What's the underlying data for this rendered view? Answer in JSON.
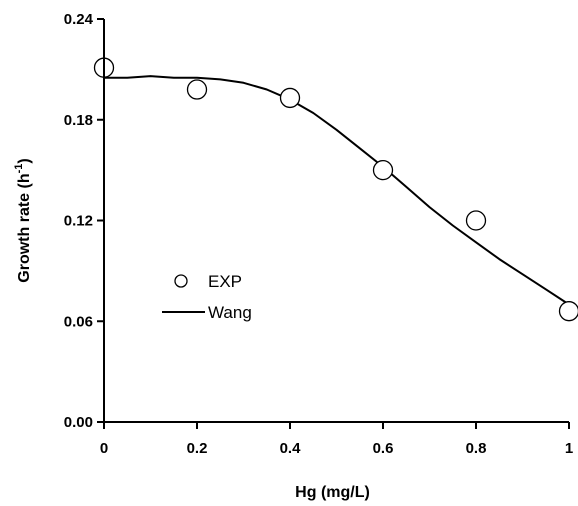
{
  "chart_data": {
    "type": "scatter",
    "title": "",
    "xlabel": "Hg (mg/L)",
    "ylabel": "Growth rate (h",
    "ylabel_sup": "-1",
    "ylabel_end": ")",
    "xlim": [
      0,
      1
    ],
    "ylim": [
      0,
      0.24
    ],
    "x_ticks": [
      "0",
      "0.2",
      "0.4",
      "0.6",
      "0.8",
      "1"
    ],
    "y_ticks": [
      "0.00",
      "0.06",
      "0.12",
      "0.18",
      "0.24"
    ],
    "grid": false,
    "legend_position": "center-left",
    "series": [
      {
        "name": "EXP",
        "kind": "markers",
        "x": [
          0,
          0.2,
          0.4,
          0.6,
          0.8,
          1.0
        ],
        "y": [
          0.211,
          0.198,
          0.193,
          0.15,
          0.12,
          0.066
        ]
      },
      {
        "name": "Wang",
        "kind": "line",
        "x": [
          0,
          0.05,
          0.1,
          0.15,
          0.2,
          0.25,
          0.3,
          0.35,
          0.4,
          0.45,
          0.5,
          0.55,
          0.6,
          0.65,
          0.7,
          0.75,
          0.8,
          0.85,
          0.9,
          0.95,
          1.0
        ],
        "y": [
          0.205,
          0.205,
          0.206,
          0.205,
          0.205,
          0.204,
          0.202,
          0.198,
          0.192,
          0.184,
          0.174,
          0.163,
          0.152,
          0.14,
          0.128,
          0.117,
          0.107,
          0.097,
          0.088,
          0.079,
          0.07
        ]
      }
    ]
  }
}
